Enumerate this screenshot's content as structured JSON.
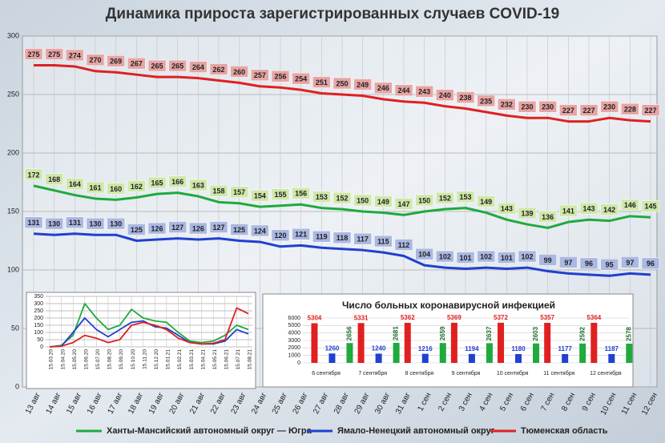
{
  "chart_data": [
    {
      "type": "line",
      "title": "Динамика прироста зарегистрированных случаев COVID-19",
      "categories": [
        "13 авг",
        "14 авг",
        "15 авг",
        "16 авг",
        "17 авг",
        "18 авг",
        "19 авг",
        "20 авг",
        "21 авг",
        "22 авг",
        "23 авг",
        "24 авг",
        "25 авг",
        "26 авг",
        "27 авг",
        "28 авг",
        "29 авг",
        "30 авг",
        "31 авг",
        "1 сен",
        "2 сен",
        "3 сен",
        "4 сен",
        "5 сен",
        "6 сен",
        "7 сен",
        "8 сен",
        "9 сен",
        "10 сен",
        "11 сен",
        "12 сен"
      ],
      "series": [
        {
          "name": "Тюменская область",
          "color": "#e02020",
          "label_color": "#e8a4a4",
          "values": [
            275,
            275,
            274,
            270,
            269,
            267,
            265,
            265,
            264,
            262,
            260,
            257,
            256,
            254,
            251,
            250,
            249,
            246,
            244,
            243,
            240,
            238,
            235,
            232,
            230,
            230,
            227,
            227,
            230,
            228,
            227
          ]
        },
        {
          "name": "Ханты-Мансийский автономный округ — Югра",
          "color": "#1faa3c",
          "label_color": "#cfe8a8",
          "values": [
            172,
            168,
            164,
            161,
            160,
            162,
            165,
            166,
            163,
            158,
            157,
            154,
            155,
            156,
            153,
            152,
            150,
            149,
            147,
            150,
            152,
            153,
            149,
            143,
            139,
            136,
            141,
            143,
            142,
            146,
            145
          ]
        },
        {
          "name": "Ямало-Ненецкий автономный округ",
          "color": "#2040d0",
          "label_color": "#aab8e2",
          "values": [
            131,
            130,
            131,
            130,
            130,
            125,
            126,
            127,
            126,
            127,
            125,
            124,
            120,
            121,
            119,
            118,
            117,
            115,
            112,
            104,
            102,
            101,
            102,
            101,
            102,
            99,
            97,
            96,
            95,
            97,
            96
          ]
        }
      ],
      "ylim": [
        0,
        300
      ],
      "yticks": [
        0,
        50,
        100,
        150,
        200,
        250,
        300
      ],
      "grid": true
    },
    {
      "type": "line",
      "categories": [
        "15.03.20",
        "15.04.20",
        "15.05.20",
        "15.06.20",
        "15.07.20",
        "15.08.20",
        "15.09.20",
        "15.10.20",
        "15.11.20",
        "15.12.20",
        "15.01.21",
        "15.02.21",
        "15.03.21",
        "15.04.21",
        "15.05.21",
        "15.06.21",
        "15.07.21",
        "15.08.21"
      ],
      "series": [
        {
          "color": "#1faa3c",
          "values": [
            0,
            10,
            80,
            300,
            200,
            120,
            150,
            260,
            200,
            180,
            170,
            100,
            40,
            30,
            40,
            80,
            150,
            120
          ]
        },
        {
          "color": "#2040d0",
          "values": [
            0,
            5,
            100,
            200,
            120,
            70,
            120,
            170,
            180,
            140,
            130,
            80,
            30,
            20,
            20,
            40,
            120,
            90
          ]
        },
        {
          "color": "#e02020",
          "values": [
            0,
            5,
            30,
            80,
            60,
            30,
            50,
            150,
            170,
            150,
            120,
            60,
            30,
            20,
            25,
            50,
            270,
            230
          ]
        }
      ],
      "ylim": [
        0,
        350
      ],
      "yticks": [
        0,
        50,
        100,
        150,
        200,
        250,
        300,
        350
      ],
      "grid": true
    },
    {
      "type": "bar",
      "title": "Число больных коронавирусной инфекцией",
      "categories": [
        "6 сентября",
        "7 сентября",
        "8 сентября",
        "9 сентября",
        "10 сентября",
        "11 сентября",
        "12 сентября"
      ],
      "series": [
        {
          "color": "#e02020",
          "values": [
            5304,
            5331,
            5362,
            5369,
            5372,
            5357,
            5364
          ]
        },
        {
          "color": "#2040d0",
          "values": [
            1260,
            1240,
            1216,
            1194,
            1180,
            1177,
            1187
          ]
        },
        {
          "color": "#1faa3c",
          "values": [
            2656,
            2681,
            2659,
            2637,
            2603,
            2592,
            2578
          ]
        }
      ],
      "ylim": [
        0,
        6000
      ],
      "yticks": [
        0,
        1000,
        2000,
        3000,
        4000,
        5000,
        6000
      ],
      "grid": true
    }
  ]
}
